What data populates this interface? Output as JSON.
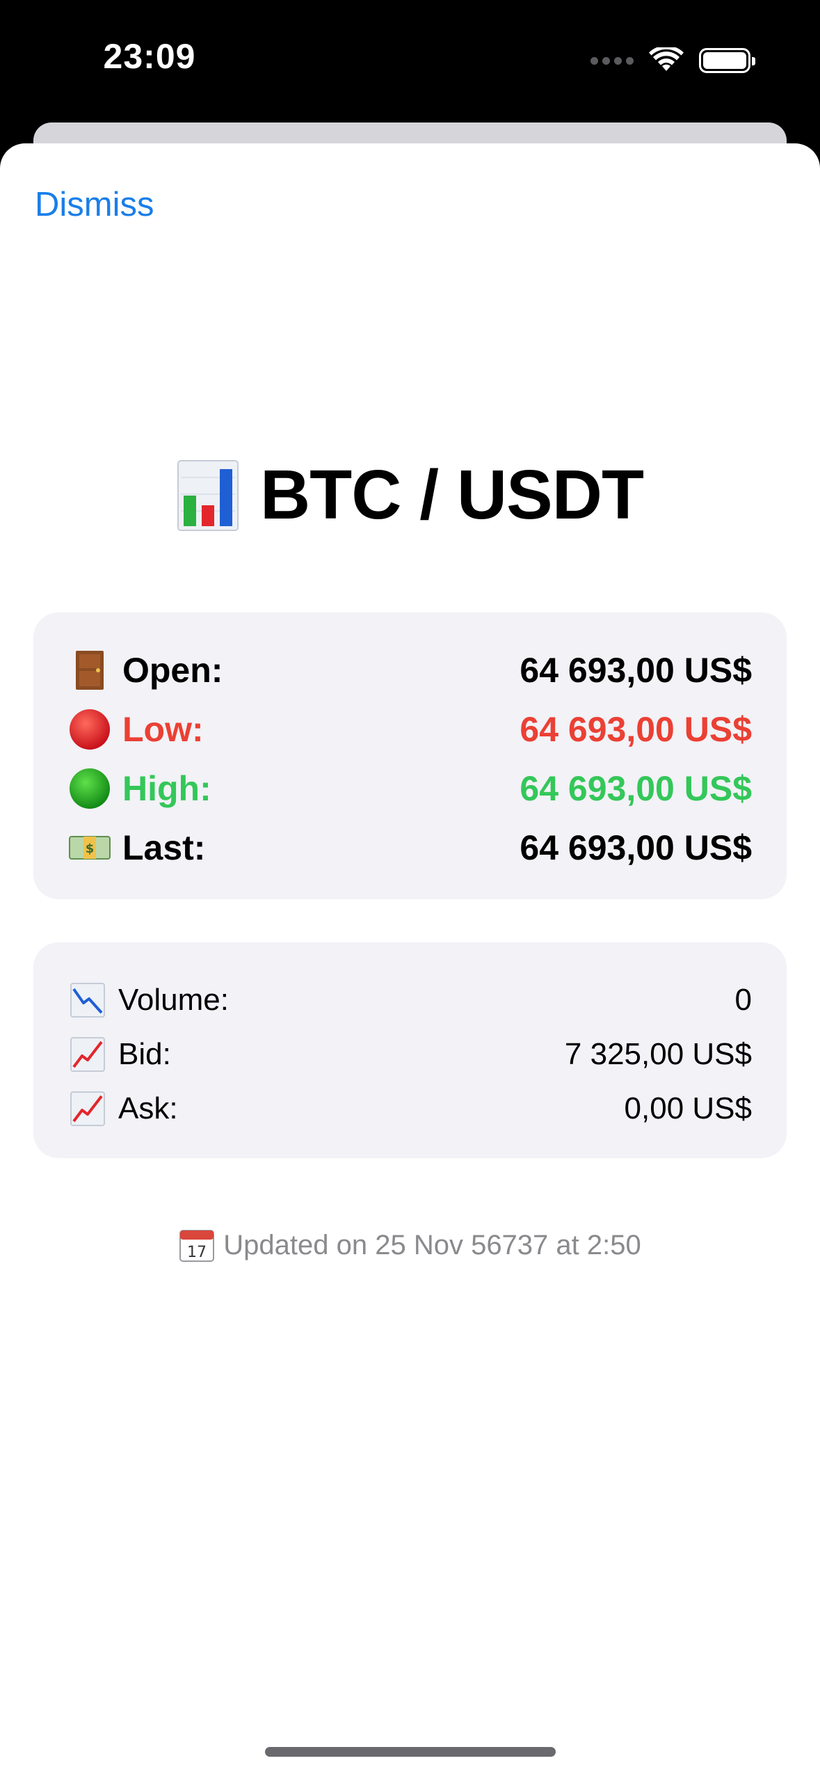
{
  "status_bar": {
    "time": "23:09",
    "icons": [
      "cellular-signal-icon",
      "wifi-icon",
      "battery-icon"
    ]
  },
  "sheet": {
    "dismiss_label": "Dismiss"
  },
  "pair": {
    "icon": "bar-chart-icon",
    "title": "BTC / USDT"
  },
  "prices": [
    {
      "icon": "door-icon",
      "label": "Open:",
      "value": "64 693,00 US$",
      "color": "#000000"
    },
    {
      "icon": "red-circle-icon",
      "label": "Low:",
      "value": "64 693,00 US$",
      "color": "#eb4034"
    },
    {
      "icon": "green-circle-icon",
      "label": "High:",
      "value": "64 693,00 US$",
      "color": "#34c759"
    },
    {
      "icon": "banknote-icon",
      "label": "Last:",
      "value": "64 693,00 US$",
      "color": "#000000"
    }
  ],
  "stats": [
    {
      "icon": "chart-decreasing-icon",
      "label": "Volume:",
      "value": "0"
    },
    {
      "icon": "chart-increasing-icon",
      "label": "Bid:",
      "value": "7 325,00 US$"
    },
    {
      "icon": "chart-increasing-icon",
      "label": "Ask:",
      "value": "0,00 US$"
    }
  ],
  "footer": {
    "icon": "calendar-icon",
    "calendar_day": "17",
    "updated_text": "Updated on 25 Nov 56737 at 2:50"
  }
}
